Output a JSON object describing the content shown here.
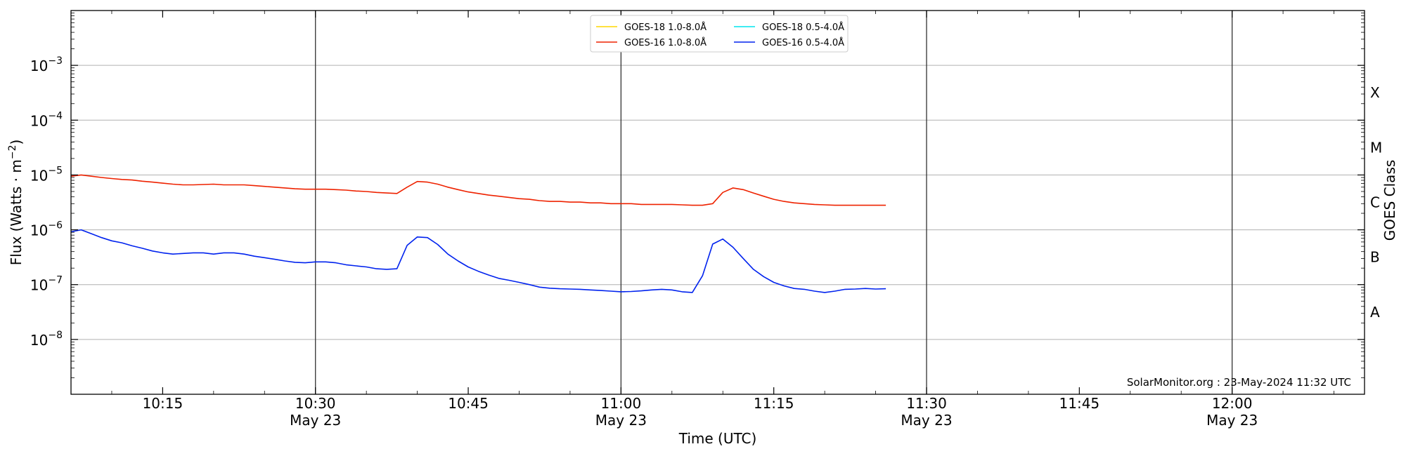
{
  "chart_data": {
    "type": "line",
    "xlabel": "Time (UTC)",
    "ylabel_main": "Flux (Watts · m",
    "ylabel_sup": "−2",
    "ylabel_end": ")",
    "right_label": "GOES Class",
    "y_scale": "log",
    "ylim": [
      1e-09,
      0.01
    ],
    "xlim": [
      "10:06",
      "12:13"
    ],
    "grid": "horizontal at decades",
    "y_ticks": [
      {
        "value": 1e-08,
        "base": "10",
        "exp": "−8"
      },
      {
        "value": 1e-07,
        "base": "10",
        "exp": "−7"
      },
      {
        "value": 1e-06,
        "base": "10",
        "exp": "−6"
      },
      {
        "value": 1e-05,
        "base": "10",
        "exp": "−5"
      },
      {
        "value": 0.0001,
        "base": "10",
        "exp": "−4"
      },
      {
        "value": 0.001,
        "base": "10",
        "exp": "−3"
      }
    ],
    "x_ticks": [
      {
        "time": "10:15",
        "label": "10:15",
        "sub": ""
      },
      {
        "time": "10:30",
        "label": "10:30",
        "sub": "May 23"
      },
      {
        "time": "10:45",
        "label": "10:45",
        "sub": ""
      },
      {
        "time": "11:00",
        "label": "11:00",
        "sub": "May 23"
      },
      {
        "time": "11:15",
        "label": "11:15",
        "sub": ""
      },
      {
        "time": "11:30",
        "label": "11:30",
        "sub": "May 23"
      },
      {
        "time": "11:45",
        "label": "11:45",
        "sub": ""
      },
      {
        "time": "12:00",
        "label": "12:00",
        "sub": "May 23"
      }
    ],
    "vertical_lines": [
      "10:30",
      "11:00",
      "11:30",
      "12:00"
    ],
    "class_labels": [
      {
        "label": "A",
        "value": 3.16e-08
      },
      {
        "label": "B",
        "value": 3.16e-07
      },
      {
        "label": "C",
        "value": 3.16e-06
      },
      {
        "label": "M",
        "value": 3.16e-05
      },
      {
        "label": "X",
        "value": 0.000316
      }
    ],
    "legend": {
      "placement": "top-center",
      "entries": [
        {
          "label": "GOES-18 1.0-8.0Å",
          "color": "#ffd700"
        },
        {
          "label": "GOES-18 0.5-4.0Å",
          "color": "#00e5ee"
        },
        {
          "label": "GOES-16 1.0-8.0Å",
          "color": "#ee2200"
        },
        {
          "label": "GOES-16 0.5-4.0Å",
          "color": "#0022ee"
        }
      ]
    },
    "credit": "SolarMonitor.org : 23-May-2024 11:32 UTC",
    "series": [
      {
        "color": "#ee2200",
        "x": [
          "10:06",
          "10:07",
          "10:08",
          "10:09",
          "10:10",
          "10:11",
          "10:12",
          "10:13",
          "10:14",
          "10:15",
          "10:16",
          "10:17",
          "10:18",
          "10:19",
          "10:20",
          "10:21",
          "10:22",
          "10:23",
          "10:24",
          "10:25",
          "10:26",
          "10:27",
          "10:28",
          "10:29",
          "10:30",
          "10:31",
          "10:32",
          "10:33",
          "10:34",
          "10:35",
          "10:36",
          "10:37",
          "10:38",
          "10:39",
          "10:40",
          "10:41",
          "10:42",
          "10:43",
          "10:44",
          "10:45",
          "10:46",
          "10:47",
          "10:48",
          "10:49",
          "10:50",
          "10:51",
          "10:52",
          "10:53",
          "10:54",
          "10:55",
          "10:56",
          "10:57",
          "10:58",
          "10:59",
          "11:00",
          "11:01",
          "11:02",
          "11:03",
          "11:04",
          "11:05",
          "11:06",
          "11:07",
          "11:08",
          "11:09",
          "11:10",
          "11:11",
          "11:12",
          "11:13",
          "11:14",
          "11:15",
          "11:16",
          "11:17",
          "11:18",
          "11:19",
          "11:20",
          "11:21",
          "11:22",
          "11:23",
          "11:24",
          "11:25",
          "11:26"
        ],
        "y": [
          9.5e-06,
          1e-05,
          9.5e-06,
          9e-06,
          8.6e-06,
          8.3e-06,
          8.1e-06,
          7.7e-06,
          7.4e-06,
          7.1e-06,
          6.8e-06,
          6.6e-06,
          6.6e-06,
          6.7e-06,
          6.8e-06,
          6.6e-06,
          6.6e-06,
          6.6e-06,
          6.4e-06,
          6.2e-06,
          6e-06,
          5.8e-06,
          5.6e-06,
          5.5e-06,
          5.5e-06,
          5.5e-06,
          5.4e-06,
          5.3e-06,
          5.1e-06,
          5e-06,
          4.8e-06,
          4.7e-06,
          4.6e-06,
          6e-06,
          7.6e-06,
          7.4e-06,
          6.8e-06,
          6e-06,
          5.4e-06,
          4.9e-06,
          4.6e-06,
          4.3e-06,
          4.1e-06,
          3.9e-06,
          3.7e-06,
          3.6e-06,
          3.4e-06,
          3.3e-06,
          3.3e-06,
          3.2e-06,
          3.2e-06,
          3.1e-06,
          3.1e-06,
          3e-06,
          3e-06,
          3e-06,
          2.9e-06,
          2.9e-06,
          2.9e-06,
          2.9e-06,
          2.85e-06,
          2.8e-06,
          2.8e-06,
          3e-06,
          4.8e-06,
          5.8e-06,
          5.4e-06,
          4.7e-06,
          4.1e-06,
          3.6e-06,
          3.3e-06,
          3.1e-06,
          3e-06,
          2.9e-06,
          2.85e-06,
          2.8e-06,
          2.8e-06,
          2.8e-06,
          2.8e-06,
          2.8e-06,
          2.8e-06
        ]
      },
      {
        "color": "#0022ee",
        "x": [
          "10:06",
          "10:07",
          "10:08",
          "10:09",
          "10:10",
          "10:11",
          "10:12",
          "10:13",
          "10:14",
          "10:15",
          "10:16",
          "10:17",
          "10:18",
          "10:19",
          "10:20",
          "10:21",
          "10:22",
          "10:23",
          "10:24",
          "10:25",
          "10:26",
          "10:27",
          "10:28",
          "10:29",
          "10:30",
          "10:31",
          "10:32",
          "10:33",
          "10:34",
          "10:35",
          "10:36",
          "10:37",
          "10:38",
          "10:39",
          "10:40",
          "10:41",
          "10:42",
          "10:43",
          "10:44",
          "10:45",
          "10:46",
          "10:47",
          "10:48",
          "10:49",
          "10:50",
          "10:51",
          "10:52",
          "10:53",
          "10:54",
          "10:55",
          "10:56",
          "10:57",
          "10:58",
          "10:59",
          "11:00",
          "11:01",
          "11:02",
          "11:03",
          "11:04",
          "11:05",
          "11:06",
          "11:07",
          "11:08",
          "11:09",
          "11:10",
          "11:11",
          "11:12",
          "11:13",
          "11:14",
          "11:15",
          "11:16",
          "11:17",
          "11:18",
          "11:19",
          "11:20",
          "11:21",
          "11:22",
          "11:23",
          "11:24",
          "11:25",
          "11:26"
        ],
        "y": [
          9.2e-07,
          1e-06,
          8.5e-07,
          7.2e-07,
          6.3e-07,
          5.8e-07,
          5.1e-07,
          4.6e-07,
          4.1e-07,
          3.8e-07,
          3.6e-07,
          3.7e-07,
          3.8e-07,
          3.8e-07,
          3.6e-07,
          3.8e-07,
          3.8e-07,
          3.6e-07,
          3.3e-07,
          3.1e-07,
          2.9e-07,
          2.7e-07,
          2.55e-07,
          2.5e-07,
          2.6e-07,
          2.6e-07,
          2.5e-07,
          2.3e-07,
          2.2e-07,
          2.1e-07,
          1.95e-07,
          1.9e-07,
          1.95e-07,
          5.2e-07,
          7.4e-07,
          7.2e-07,
          5.4e-07,
          3.6e-07,
          2.7e-07,
          2.1e-07,
          1.75e-07,
          1.5e-07,
          1.3e-07,
          1.2e-07,
          1.1e-07,
          1e-07,
          9e-08,
          8.6e-08,
          8.4e-08,
          8.3e-08,
          8.2e-08,
          8e-08,
          7.8e-08,
          7.6e-08,
          7.4e-08,
          7.5e-08,
          7.7e-08,
          8e-08,
          8.2e-08,
          8e-08,
          7.4e-08,
          7.2e-08,
          1.45e-07,
          5.5e-07,
          6.8e-07,
          4.8e-07,
          3e-07,
          1.9e-07,
          1.4e-07,
          1.1e-07,
          9.5e-08,
          8.5e-08,
          8.2e-08,
          7.6e-08,
          7.2e-08,
          7.6e-08,
          8.2e-08,
          8.3e-08,
          8.5e-08,
          8.3e-08,
          8.4e-08
        ]
      }
    ]
  }
}
